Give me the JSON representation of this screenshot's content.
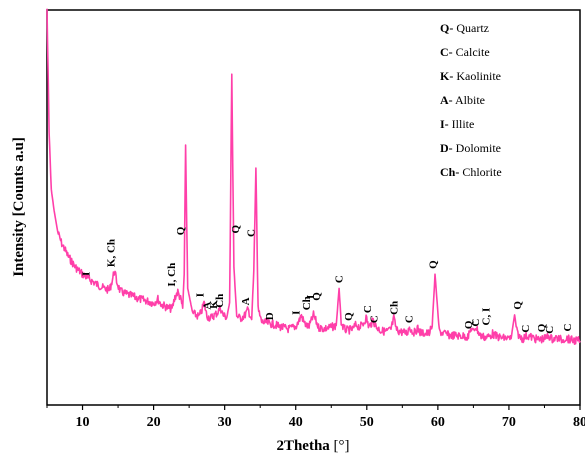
{
  "chart_data": {
    "type": "line",
    "xlabel": "2Thetha",
    "xunit": "[°]",
    "ylabel": "Intensity [Counts a.u]",
    "xlim": [
      5,
      80
    ],
    "x_ticks": [
      10,
      20,
      30,
      40,
      50,
      60,
      70,
      80
    ],
    "y_ticks_shown": false,
    "grid": false,
    "legend_position": "top-right",
    "line_color": "#ff3fa9",
    "legend": [
      {
        "abbr": "Q-",
        "name": "Quartz"
      },
      {
        "abbr": "C-",
        "name": "Calcite"
      },
      {
        "abbr": "K-",
        "name": "Kaolinite"
      },
      {
        "abbr": "A-",
        "name": "Albite"
      },
      {
        "abbr": "I-",
        "name": "Illite"
      },
      {
        "abbr": "D-",
        "name": "Dolomite"
      },
      {
        "abbr": "Ch-",
        "name": "Chlorite"
      }
    ],
    "series": [
      {
        "x": [
          5.0,
          5.3,
          5.6,
          6.0,
          6.5,
          7.0,
          7.5,
          8.0,
          9.0,
          10.0,
          11.0,
          12.0,
          13.0,
          13.8,
          14.2,
          14.5,
          14.8,
          15.3,
          16.0,
          17.0,
          18.0,
          19.0,
          20.0,
          20.6,
          21.0,
          22.0,
          22.6,
          23.0,
          23.4,
          23.8,
          24.1,
          24.3,
          24.5,
          24.8,
          25.5,
          26.4,
          26.8,
          27.1,
          27.5,
          28.0,
          28.6,
          29.0,
          29.4,
          29.8,
          30.3,
          30.7,
          31.0,
          31.3,
          31.7,
          32.2,
          32.8,
          33.3,
          33.8,
          34.1,
          34.4,
          34.7,
          35.2,
          36.0,
          37.0,
          38.0,
          39.0,
          40.0,
          40.5,
          40.8,
          41.2,
          41.8,
          42.2,
          42.5,
          43.2,
          44.0,
          45.0,
          45.7,
          46.1,
          46.4,
          46.8,
          47.3,
          48.0,
          48.5,
          49.0,
          49.5,
          49.9,
          50.3,
          50.6,
          50.9,
          51.3,
          52.0,
          52.8,
          53.4,
          53.8,
          54.2,
          55.0,
          55.7,
          56.0,
          56.3,
          56.8,
          57.1,
          57.5,
          58.2,
          58.8,
          59.2,
          59.6,
          60.2,
          61.5,
          63.0,
          64.3,
          64.7,
          65.0,
          65.3,
          66.0,
          66.7,
          67.2,
          67.7,
          68.2,
          69.0,
          70.3,
          70.8,
          71.1,
          71.5,
          72.0,
          72.5,
          73.0,
          73.6,
          74.3,
          75.0,
          75.6,
          76.1,
          76.6,
          77.0,
          77.5,
          78.0,
          78.5,
          79.0,
          80.0
        ],
        "y": [
          1150,
          800,
          640,
          580,
          520,
          490,
          470,
          450,
          420,
          400,
          385,
          372,
          360,
          355,
          385,
          410,
          380,
          352,
          345,
          338,
          330,
          325,
          318,
          330,
          316,
          305,
          302,
          335,
          350,
          330,
          304,
          400,
          765,
          360,
          290,
          280,
          298,
          320,
          282,
          276,
          285,
          292,
          305,
          284,
          278,
          320,
          965,
          420,
          282,
          275,
          283,
          300,
          272,
          410,
          700,
          300,
          265,
          262,
          258,
          250,
          245,
          252,
          270,
          284,
          262,
          250,
          268,
          285,
          250,
          246,
          250,
          255,
          360,
          262,
          245,
          242,
          244,
          258,
          250,
          260,
          278,
          250,
          260,
          270,
          252,
          240,
          238,
          244,
          275,
          242,
          236,
          234,
          252,
          240,
          235,
          248,
          236,
          232,
          234,
          252,
          400,
          238,
          228,
          226,
          224,
          248,
          236,
          252,
          226,
          222,
          224,
          232,
          225,
          220,
          218,
          285,
          240,
          222,
          218,
          226,
          224,
          218,
          215,
          218,
          226,
          216,
          220,
          218,
          214,
          220,
          216,
          213,
          212
        ]
      }
    ],
    "peak_labels": [
      {
        "text": "I",
        "x": 11.0,
        "y": 395
      },
      {
        "text": "K, Ch",
        "x": 14.5,
        "y": 420
      },
      {
        "text": "I, Ch",
        "x": 23.0,
        "y": 365
      },
      {
        "text": "Q",
        "x": 24.3,
        "y": 510
      },
      {
        "text": "I",
        "x": 27.0,
        "y": 335
      },
      {
        "text": "A",
        "x": 28.0,
        "y": 300
      },
      {
        "text": "K",
        "x": 28.9,
        "y": 302
      },
      {
        "text": "Ch",
        "x": 29.8,
        "y": 305
      },
      {
        "text": "Q",
        "x": 32.0,
        "y": 515
      },
      {
        "text": "C",
        "x": 34.2,
        "y": 505
      },
      {
        "text": "A",
        "x": 33.4,
        "y": 312
      },
      {
        "text": "D",
        "x": 36.8,
        "y": 270
      },
      {
        "text": "I",
        "x": 40.5,
        "y": 285
      },
      {
        "text": "Ch",
        "x": 42.0,
        "y": 298
      },
      {
        "text": "I",
        "x": 42.6,
        "y": 330
      },
      {
        "text": "Q",
        "x": 43.4,
        "y": 325
      },
      {
        "text": "C",
        "x": 46.6,
        "y": 375
      },
      {
        "text": "Q",
        "x": 47.9,
        "y": 268
      },
      {
        "text": "C",
        "x": 50.6,
        "y": 290
      },
      {
        "text": "C",
        "x": 51.5,
        "y": 262
      },
      {
        "text": "Ch",
        "x": 54.3,
        "y": 285
      },
      {
        "text": "C",
        "x": 56.4,
        "y": 262
      },
      {
        "text": "Q",
        "x": 59.8,
        "y": 415
      },
      {
        "text": "Q",
        "x": 64.8,
        "y": 245
      },
      {
        "text": "C",
        "x": 65.8,
        "y": 252
      },
      {
        "text": "C, I",
        "x": 67.3,
        "y": 255
      },
      {
        "text": "Q",
        "x": 71.7,
        "y": 300
      },
      {
        "text": "C",
        "x": 72.8,
        "y": 235
      },
      {
        "text": "Q",
        "x": 75.1,
        "y": 236
      },
      {
        "text": "C",
        "x": 76.2,
        "y": 232
      },
      {
        "text": "C",
        "x": 78.7,
        "y": 238
      }
    ]
  }
}
